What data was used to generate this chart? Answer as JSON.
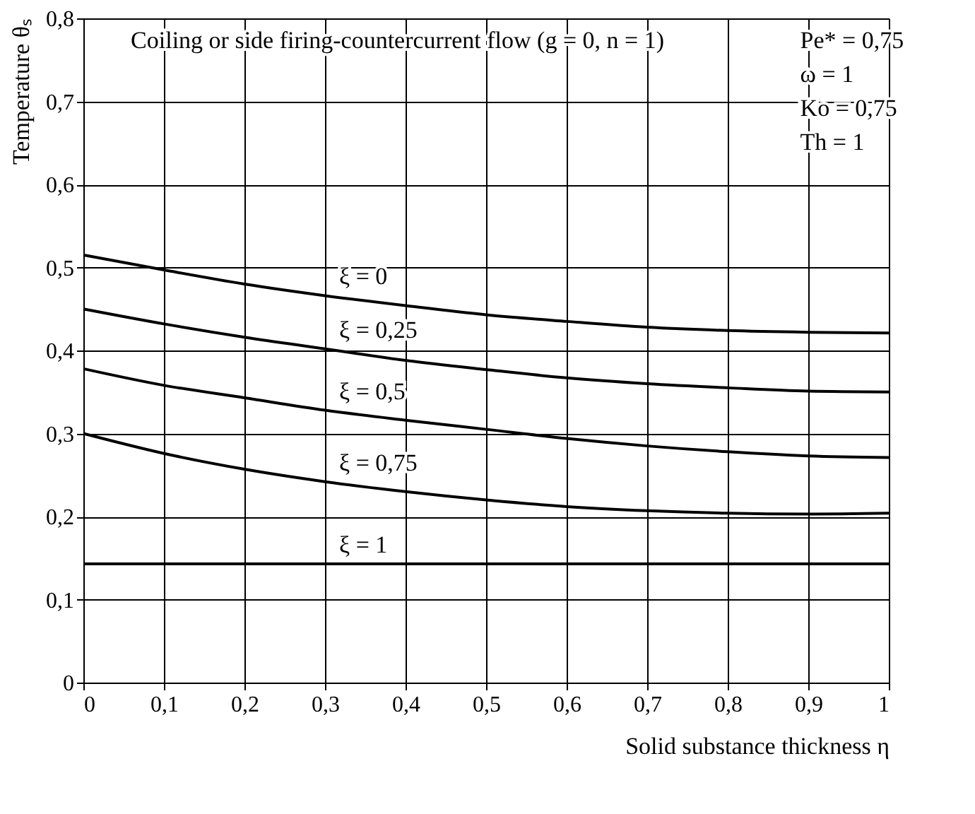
{
  "chart_data": {
    "type": "line",
    "title": "Coiling or side firing-countercurrent flow (g = 0, n = 1)",
    "xlabel": "Solid substance thickness η",
    "ylabel": "Temperature θₛ",
    "x": [
      0,
      0.1,
      0.2,
      0.3,
      0.4,
      0.5,
      0.6,
      0.7,
      0.8,
      0.9,
      1
    ],
    "series": [
      {
        "name": "ξ = 0",
        "color": "#000000",
        "values": [
          0.515,
          0.497,
          0.48,
          0.466,
          0.454,
          0.443,
          0.435,
          0.428,
          0.424,
          0.422,
          0.421
        ]
      },
      {
        "name": "ξ = 0,25",
        "color": "#000000",
        "values": [
          0.45,
          0.432,
          0.416,
          0.402,
          0.388,
          0.377,
          0.367,
          0.36,
          0.355,
          0.351,
          0.35
        ]
      },
      {
        "name": "ξ = 0,5",
        "color": "#000000",
        "values": [
          0.378,
          0.358,
          0.343,
          0.328,
          0.316,
          0.305,
          0.294,
          0.285,
          0.278,
          0.273,
          0.271
        ]
      },
      {
        "name": "ξ = 0,75",
        "color": "#000000",
        "values": [
          0.3,
          0.276,
          0.257,
          0.242,
          0.23,
          0.22,
          0.212,
          0.207,
          0.204,
          0.203,
          0.204
        ]
      },
      {
        "name": "ξ = 1",
        "color": "#000000",
        "values": [
          0.143,
          0.143,
          0.143,
          0.143,
          0.143,
          0.143,
          0.143,
          0.143,
          0.143,
          0.143,
          0.143
        ]
      }
    ],
    "annotations": [
      "Pe* = 0,75",
      "ω = 1",
      "Ko = 0,75",
      "Th = 1"
    ],
    "xlim": [
      0,
      1
    ],
    "ylim": [
      0,
      0.8
    ],
    "xticks": [
      0,
      {
        "value": 0.1,
        "label": "0,1"
      },
      {
        "value": 0.2,
        "label": "0,2"
      },
      {
        "value": 0.3,
        "label": "0,3"
      },
      {
        "value": 0.4,
        "label": "0,4"
      },
      {
        "value": 0.5,
        "label": "0,5"
      },
      {
        "value": 0.6,
        "label": "0,6"
      },
      {
        "value": 0.7,
        "label": "0,7"
      },
      {
        "value": 0.8,
        "label": "0,8"
      },
      {
        "value": 0.9,
        "label": "0,9"
      },
      1
    ],
    "yticks": [
      0,
      {
        "value": 0.1,
        "label": "0,1"
      },
      {
        "value": 0.2,
        "label": "0,2"
      },
      {
        "value": 0.3,
        "label": "0,3"
      },
      {
        "value": 0.4,
        "label": "0,4"
      },
      {
        "value": 0.5,
        "label": "0,5"
      },
      {
        "value": 0.6,
        "label": "0,6"
      },
      {
        "value": 0.7,
        "label": "0,7"
      },
      {
        "value": 0.8,
        "label": "0,8"
      }
    ],
    "grid": true,
    "legend": false,
    "marker": "none",
    "line_style": "solid"
  }
}
